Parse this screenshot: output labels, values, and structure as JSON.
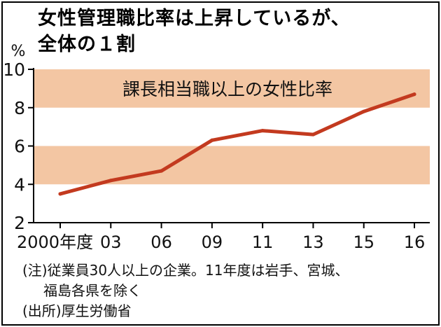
{
  "title_lines": [
    "女性管理職比率は上昇しているが、",
    "全体の１割"
  ],
  "colors": {
    "band": "#f3c6a3",
    "line": "#c33a1f",
    "axis": "#000000"
  },
  "chart_data": {
    "type": "line",
    "title": "女性管理職比率は上昇しているが、全体の１割",
    "ylabel": "%",
    "xlabel": "",
    "ylim": [
      2,
      10
    ],
    "yticks": [
      "2",
      "4",
      "6",
      "8",
      "10"
    ],
    "categories": [
      "2000年度",
      "03",
      "06",
      "09",
      "11",
      "13",
      "15",
      "16"
    ],
    "series": [
      {
        "name": "課長相当職以上の女性比率",
        "values": [
          3.5,
          4.2,
          4.7,
          6.3,
          6.8,
          6.6,
          7.8,
          8.7
        ]
      }
    ],
    "bands": [
      [
        4,
        6
      ],
      [
        8,
        10
      ]
    ],
    "grid": false,
    "legend": "inside-top"
  },
  "notes": {
    "note_line1": "(注)従業員30人以上の企業。11年度は岩手、宮城、",
    "note_line2": "福島各県を除く",
    "source": "(出所)厚生労働省"
  }
}
